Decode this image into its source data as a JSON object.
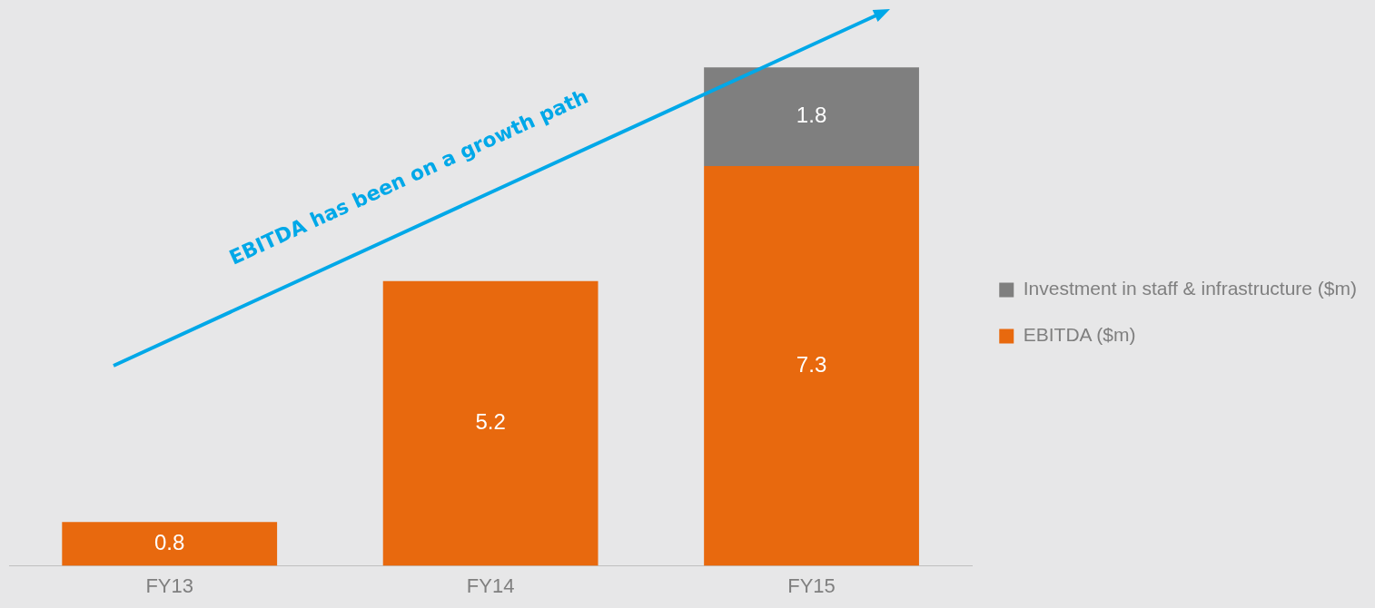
{
  "chart_data": {
    "type": "bar",
    "stacked": true,
    "categories": [
      "FY13",
      "FY14",
      "FY15"
    ],
    "series": [
      {
        "name": "EBITDA ($m)",
        "color": "#e8690e",
        "values": [
          0.8,
          5.2,
          7.3
        ]
      },
      {
        "name": "Investment in staff & infrastructure ($m)",
        "color": "#7f7f7f",
        "values": [
          null,
          null,
          1.8
        ]
      }
    ],
    "data_labels": true,
    "legend": "right",
    "grid": false,
    "annotations": [
      "EBITDA has been on a growth path"
    ]
  }
}
